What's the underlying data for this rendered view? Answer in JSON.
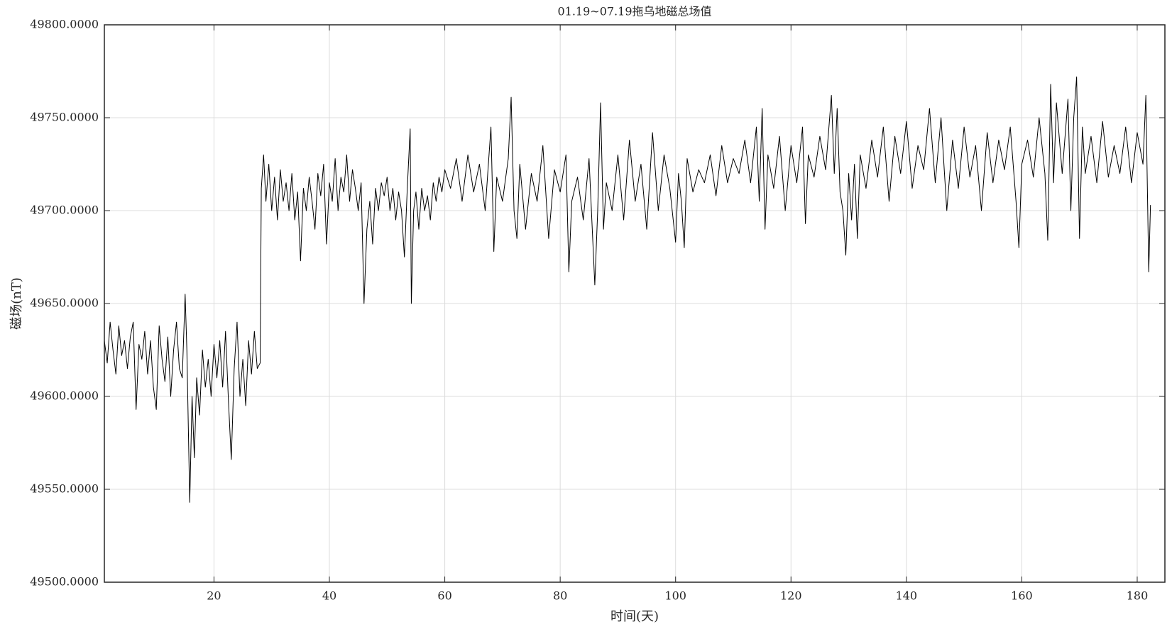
{
  "chart_data": {
    "type": "line",
    "title": "01.19~07.19拖乌地磁总场值",
    "x_label": "时间(天)",
    "y_label": "磁场(nT)",
    "color": "#000000",
    "grid": true,
    "xlim": [
      1,
      184.8
    ],
    "ylim": [
      49500,
      49800
    ],
    "xticks": [
      20,
      40,
      60,
      80,
      100,
      120,
      140,
      160,
      180
    ],
    "yticks": [
      {
        "value": 49500,
        "label": "49500.0000"
      },
      {
        "value": 49550,
        "label": "49550.0000"
      },
      {
        "value": 49600,
        "label": "49600.0000"
      },
      {
        "value": 49650,
        "label": "49650.0000"
      },
      {
        "value": 49700,
        "label": "49700.0000"
      },
      {
        "value": 49750,
        "label": "49750.0000"
      },
      {
        "value": 49800,
        "label": "49800.0000"
      }
    ],
    "x": [
      1,
      1.5,
      2,
      2.5,
      3,
      3.5,
      4,
      4.5,
      5,
      5.5,
      6,
      6.5,
      7,
      7.5,
      8,
      8.5,
      9,
      9.5,
      10,
      10.5,
      11,
      11.5,
      12,
      12.5,
      13,
      13.5,
      14,
      14.5,
      15,
      15.3,
      15.8,
      16.2,
      16.6,
      17,
      17.5,
      18,
      18.5,
      19,
      19.5,
      20,
      20.5,
      21,
      21.5,
      22,
      22.5,
      23,
      23.5,
      24,
      24.5,
      25,
      25.5,
      26,
      26.5,
      27,
      27.5,
      28,
      28.2,
      28.6,
      29,
      29.5,
      30,
      30.5,
      31,
      31.5,
      32,
      32.5,
      33,
      33.5,
      34,
      34.5,
      35,
      35.5,
      36,
      36.5,
      37,
      37.5,
      38,
      38.5,
      39,
      39.5,
      40,
      40.5,
      41,
      41.5,
      42,
      42.5,
      43,
      43.5,
      44,
      44.5,
      45,
      45.5,
      46,
      46.5,
      47,
      47.5,
      48,
      48.5,
      49,
      49.5,
      50,
      50.5,
      51,
      51.5,
      52,
      52.5,
      53,
      53.5,
      54,
      54.2,
      54.6,
      55,
      55.5,
      56,
      56.5,
      57,
      57.5,
      58,
      58.5,
      59,
      59.5,
      60,
      61,
      62,
      63,
      64,
      65,
      66,
      67,
      68,
      68.5,
      69,
      70,
      71,
      71.5,
      72,
      72.5,
      73,
      74,
      75,
      76,
      77,
      78,
      79,
      80,
      81,
      81.5,
      82,
      83,
      84,
      85,
      86,
      86.5,
      87,
      87.5,
      88,
      89,
      90,
      91,
      92,
      93,
      94,
      95,
      96,
      97,
      98,
      99,
      100,
      100.5,
      101,
      101.5,
      102,
      103,
      104,
      105,
      106,
      107,
      108,
      109,
      110,
      111,
      112,
      113,
      114,
      114.5,
      115,
      115.5,
      116,
      117,
      118,
      119,
      120,
      121,
      122,
      122.5,
      123,
      124,
      125,
      126,
      127,
      127.5,
      128,
      128.5,
      129,
      129.5,
      130,
      130.5,
      131,
      131.5,
      132,
      133,
      134,
      135,
      136,
      137,
      138,
      139,
      140,
      141,
      142,
      143,
      144,
      145,
      146,
      147,
      148,
      149,
      150,
      151,
      152,
      153,
      154,
      155,
      156,
      157,
      158,
      159,
      159.5,
      160,
      161,
      162,
      163,
      164,
      164.5,
      165,
      165.5,
      166,
      167,
      168,
      168.5,
      169,
      169.5,
      170,
      170.5,
      171,
      172,
      173,
      174,
      175,
      176,
      177,
      178,
      179,
      180,
      181,
      181.5,
      182,
      182.3
    ],
    "values": [
      49630,
      49618,
      49640,
      49625,
      49612,
      49638,
      49622,
      49630,
      49615,
      49632,
      49640,
      49593,
      49628,
      49620,
      49635,
      49612,
      49630,
      49605,
      49593,
      49638,
      49620,
      49608,
      49632,
      49600,
      49625,
      49640,
      49615,
      49610,
      49655,
      49625,
      49543,
      49600,
      49567,
      49610,
      49590,
      49625,
      49605,
      49620,
      49600,
      49628,
      49610,
      49630,
      49605,
      49635,
      49598,
      49566,
      49615,
      49640,
      49600,
      49620,
      49595,
      49630,
      49612,
      49635,
      49615,
      49618,
      49712,
      49730,
      49705,
      49725,
      49700,
      49718,
      49695,
      49722,
      49705,
      49715,
      49700,
      49720,
      49695,
      49710,
      49673,
      49712,
      49700,
      49718,
      49705,
      49690,
      49720,
      49708,
      49725,
      49682,
      49715,
      49705,
      49728,
      49700,
      49718,
      49710,
      49730,
      49705,
      49722,
      49712,
      49700,
      49715,
      49650,
      49690,
      49705,
      49682,
      49712,
      49700,
      49715,
      49708,
      49718,
      49700,
      49712,
      49695,
      49710,
      49700,
      49675,
      49712,
      49744,
      49650,
      49700,
      49710,
      49690,
      49712,
      49700,
      49708,
      49695,
      49715,
      49705,
      49718,
      49710,
      49722,
      49712,
      49728,
      49705,
      49730,
      49710,
      49725,
      49700,
      49745,
      49678,
      49718,
      49705,
      49728,
      49761,
      49700,
      49685,
      49725,
      49690,
      49720,
      49705,
      49735,
      49685,
      49722,
      49710,
      49730,
      49667,
      49705,
      49718,
      49695,
      49728,
      49660,
      49700,
      49758,
      49690,
      49715,
      49700,
      49730,
      49695,
      49738,
      49705,
      49725,
      49690,
      49742,
      49700,
      49730,
      49712,
      49683,
      49720,
      49705,
      49680,
      49728,
      49710,
      49722,
      49715,
      49730,
      49708,
      49735,
      49715,
      49728,
      49720,
      49738,
      49715,
      49745,
      49705,
      49755,
      49690,
      49730,
      49712,
      49740,
      49700,
      49735,
      49715,
      49745,
      49693,
      49730,
      49718,
      49740,
      49722,
      49762,
      49720,
      49755,
      49710,
      49700,
      49676,
      49720,
      49695,
      49725,
      49685,
      49730,
      49712,
      49738,
      49718,
      49745,
      49705,
      49740,
      49720,
      49748,
      49712,
      49735,
      49722,
      49755,
      49715,
      49750,
      49700,
      49738,
      49712,
      49745,
      49718,
      49735,
      49700,
      49742,
      49715,
      49738,
      49722,
      49745,
      49705,
      49680,
      49725,
      49738,
      49718,
      49750,
      49720,
      49684,
      49768,
      49715,
      49758,
      49720,
      49760,
      49700,
      49750,
      49772,
      49685,
      49745,
      49720,
      49740,
      49715,
      49748,
      49718,
      49735,
      49720,
      49745,
      49715,
      49742,
      49725,
      49762,
      49667,
      49703
    ]
  }
}
